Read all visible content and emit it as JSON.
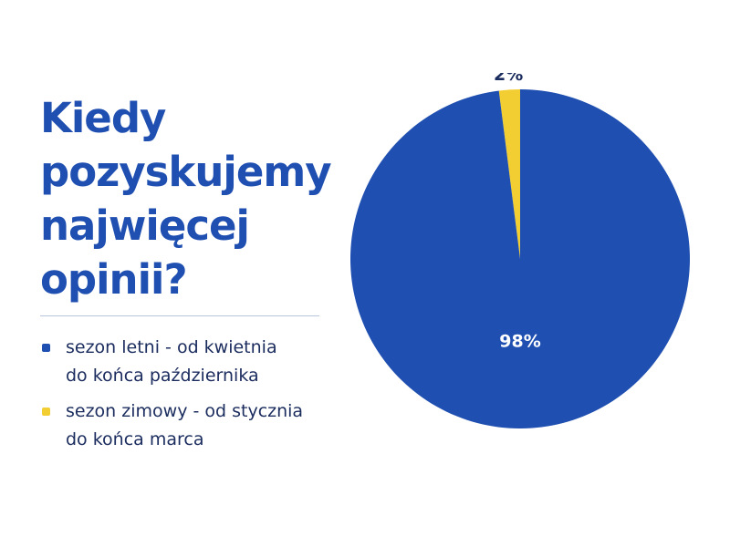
{
  "title_lines": [
    "Kiedy",
    "pozyskujemy",
    "najwięcej",
    "opinii?"
  ],
  "chart_data": {
    "type": "pie",
    "categories": [
      "sezon letni - od kwietnia do końca października",
      "sezon zimowy - od stycznia do końca marca"
    ],
    "values": [
      98,
      2
    ],
    "data_labels": [
      "98%",
      "2%"
    ],
    "colors": [
      "#1f4fb0",
      "#f3ce33"
    ],
    "legend_position": "left",
    "legend": [
      {
        "line1": "sezon letni - od kwietnia",
        "line2": "do końca października"
      },
      {
        "line1": "sezon zimowy - od stycznia",
        "line2": "do końca marca"
      }
    ]
  },
  "colors": {
    "title": "#1f4fb0",
    "legend_text": "#1b2c5e",
    "inner_label": "#ffffff",
    "outer_label": "#1b2c5e"
  }
}
